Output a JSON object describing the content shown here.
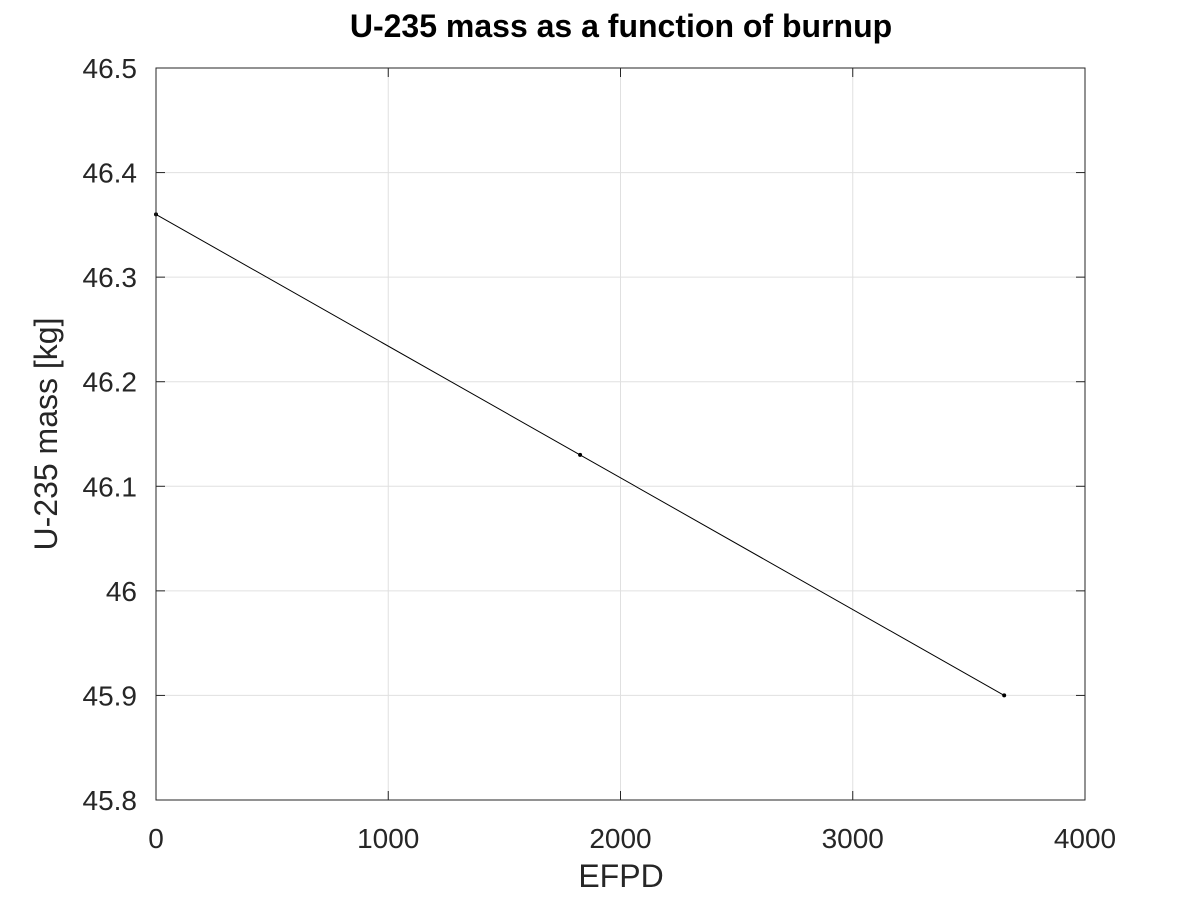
{
  "chart_data": {
    "type": "line",
    "title": "U-235 mass as a function of burnup",
    "xlabel": "EFPD",
    "ylabel": "U-235 mass [kg]",
    "xlim": [
      0,
      4000
    ],
    "ylim": [
      45.8,
      46.5
    ],
    "x_ticks": [
      0,
      1000,
      2000,
      3000,
      4000
    ],
    "x_tick_labels": [
      "0",
      "1000",
      "2000",
      "3000",
      "4000"
    ],
    "y_ticks": [
      45.8,
      45.9,
      46.0,
      46.1,
      46.2,
      46.3,
      46.4,
      46.5
    ],
    "y_tick_labels": [
      "45.8",
      "45.9",
      "46",
      "46.1",
      "46.2",
      "46.3",
      "46.4",
      "46.5"
    ],
    "grid": true,
    "series": [
      {
        "x": [
          0,
          1826,
          3652
        ],
        "y": [
          46.36,
          46.13,
          45.9
        ],
        "color": "#000000",
        "marker": "point"
      }
    ]
  }
}
